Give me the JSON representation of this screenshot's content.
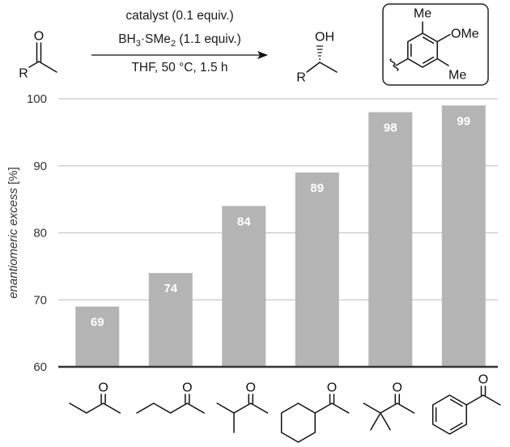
{
  "scheme": {
    "substrate": {
      "oxygen": "O",
      "r_group": "R"
    },
    "conditions": {
      "catalyst": "catalyst (0.1 equiv.)",
      "reagent": [
        "BH",
        "3",
        "·SMe",
        "2",
        " (1.1 equiv.)"
      ],
      "solvent": "THF, 50 °C, 1.5 h"
    },
    "product": {
      "hydroxyl": "OH",
      "r_group": "R"
    },
    "catalyst_aryl": {
      "top_methyl": "Me",
      "methoxy": "OMe",
      "bottom_methyl": "Me"
    }
  },
  "substrates": [
    {
      "oxygen": "O"
    },
    {
      "oxygen": "O"
    },
    {
      "oxygen": "O"
    },
    {
      "oxygen": "O"
    },
    {
      "oxygen": "O"
    },
    {
      "oxygen": "O"
    }
  ],
  "colors": {
    "bar": "#b4b4b4",
    "bar_label": "#ffffff",
    "grid": "#c9c9c9",
    "axis": "#333333"
  },
  "chart_data": {
    "type": "bar",
    "values": [
      69,
      74,
      84,
      89,
      98,
      99
    ],
    "ylabel": "enantiomeric excess [%]",
    "ylim": [
      60,
      100
    ],
    "yticks": [
      60,
      70,
      80,
      90,
      100
    ],
    "grid": true,
    "legend": "none"
  }
}
